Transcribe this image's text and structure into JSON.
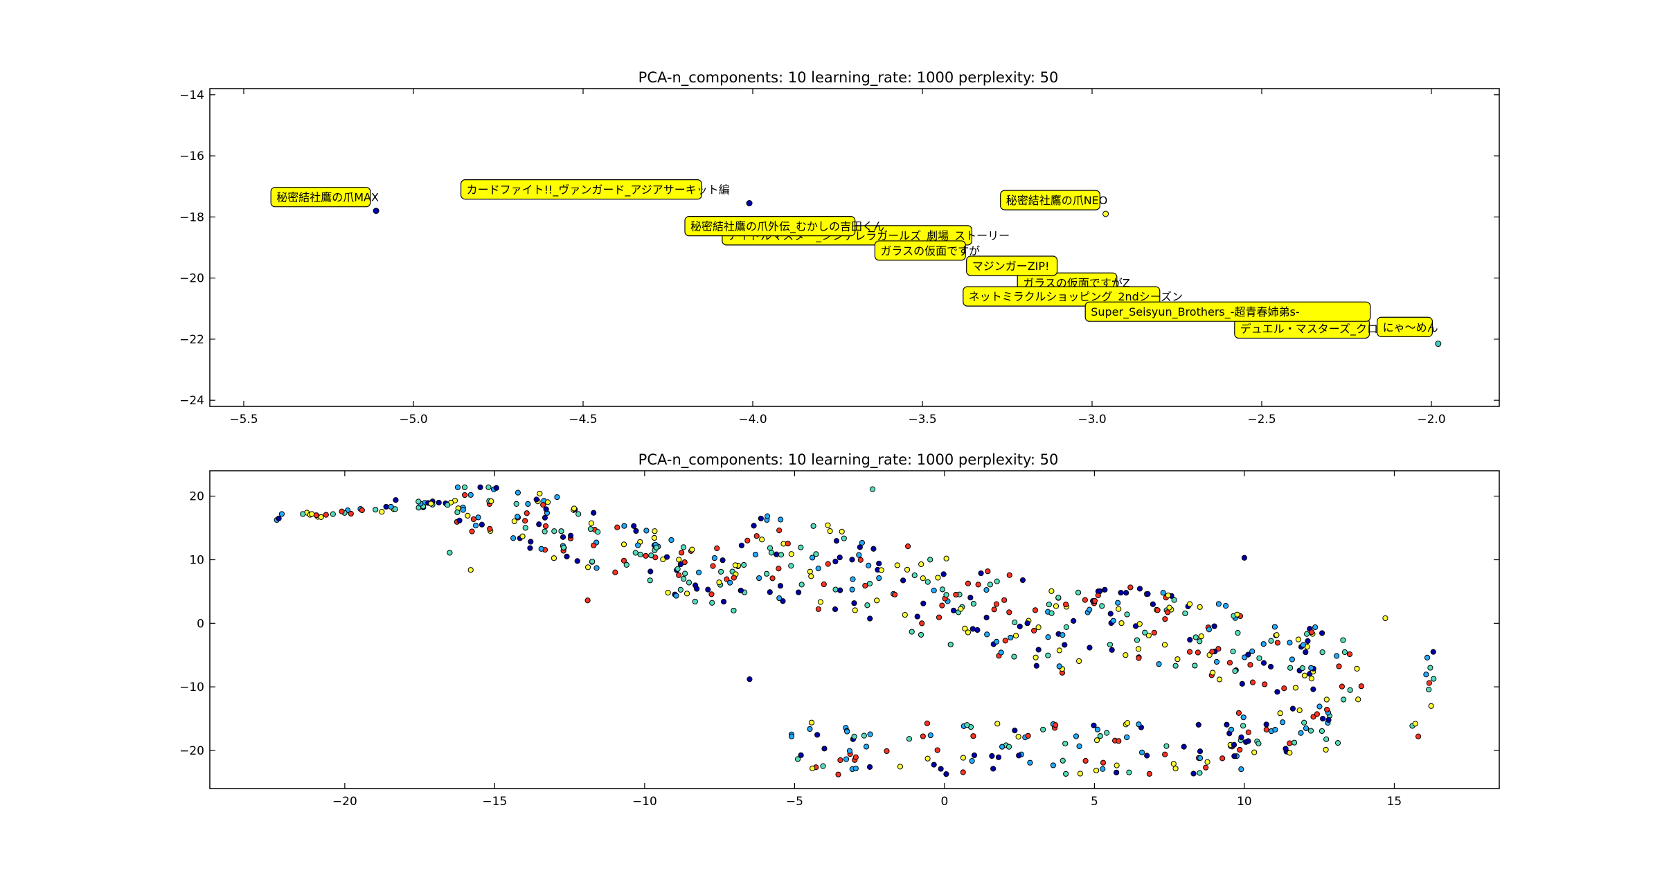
{
  "chart_data": [
    {
      "type": "scatter",
      "title": "PCA-n_components: 10 learning_rate: 1000 perplexity: 50",
      "xlabel": "",
      "ylabel": "",
      "xlim": [
        -5.6,
        -1.8
      ],
      "ylim": [
        -24.2,
        -13.8
      ],
      "xticks": [
        -5.5,
        -5.0,
        -4.5,
        -4.0,
        -3.5,
        -3.0,
        -2.5,
        -2.0
      ],
      "yticks": [
        -14,
        -16,
        -18,
        -20,
        -22,
        -24
      ],
      "grid": false,
      "points": [
        {
          "x": -5.11,
          "y": -17.8,
          "color": "#0000aa"
        },
        {
          "x": -4.01,
          "y": -17.55,
          "color": "#0000aa"
        },
        {
          "x": -2.96,
          "y": -17.9,
          "color": "#ffff33"
        },
        {
          "x": -1.98,
          "y": -22.15,
          "color": "#44ccbb"
        }
      ],
      "annotations": [
        {
          "label": "秘密結社鷹の爪MAX",
          "x": -5.42,
          "y": -17.35
        },
        {
          "label": "カードファイト!!_ヴァンガード_アジアサーキット編",
          "x": -4.86,
          "y": -17.1
        },
        {
          "label": "秘密結社鷹の爪NEO",
          "x": -3.27,
          "y": -17.45
        },
        {
          "label": "アイドルマスター_シンデレラガールズ_劇場_ストーリー",
          "x": -4.09,
          "y": -18.6
        },
        {
          "label": "秘密結社鷹の爪外伝_むかしの吉田くん",
          "x": -4.2,
          "y": -18.3
        },
        {
          "label": "ガラスの仮面ですが",
          "x": -3.64,
          "y": -19.1
        },
        {
          "label": "ガラスの仮面ですがZ",
          "x": -3.22,
          "y": -20.15
        },
        {
          "label": "マジンガーZIP!",
          "x": -3.37,
          "y": -19.6
        },
        {
          "label": "ネットミラクルショッピング_2ndシーズン",
          "x": -3.38,
          "y": -20.6
        },
        {
          "label": "デュエル・マスターズ_クロス",
          "x": -2.58,
          "y": -21.65
        },
        {
          "label": "Super_Seisyun_Brothers_-超青春姉弟s-",
          "x": -3.02,
          "y": -21.1
        },
        {
          "label": "にゃ〜めん",
          "x": -2.16,
          "y": -21.6
        }
      ]
    },
    {
      "type": "scatter",
      "title": "PCA-n_components: 10 learning_rate: 1000 perplexity: 50",
      "xlabel": "",
      "ylabel": "",
      "xlim": [
        -24.5,
        18.5
      ],
      "ylim": [
        -26,
        24
      ],
      "xticks": [
        -20,
        -15,
        -10,
        -5,
        0,
        5,
        10,
        15
      ],
      "yticks": [
        20,
        10,
        0,
        -10,
        -20
      ],
      "grid": false,
      "colors": [
        "#0000aa",
        "#22aaff",
        "#55ddbb",
        "#ffff33",
        "#ff3322"
      ],
      "cloud": [
        {
          "x_range": [
            -22.3,
            -16.3
          ],
          "y_range": [
            15.8,
            19.5
          ],
          "count": 34,
          "note": "upper-left tail"
        },
        {
          "x_range": [
            -16.3,
            -6.8
          ],
          "y_range": [
            2.0,
            21.4
          ],
          "count": 150,
          "note": "upper band"
        },
        {
          "x_range": [
            -6.8,
            4.8
          ],
          "y_range": [
            -8.0,
            17.0
          ],
          "count": 170,
          "note": "central band"
        },
        {
          "x_range": [
            4.8,
            13.8
          ],
          "y_range": [
            -12.0,
            10.5
          ],
          "count": 140,
          "note": "right band"
        },
        {
          "x_range": [
            -5.2,
            10.5
          ],
          "y_range": [
            -23.8,
            -15.5
          ],
          "count": 120,
          "note": "lower cluster"
        },
        {
          "x_range": [
            9.5,
            13.2
          ],
          "y_range": [
            -20.5,
            -13.0
          ],
          "count": 40,
          "note": "lower-right cluster"
        },
        {
          "x_range": [
            15.6,
            16.4
          ],
          "y_range": [
            -18.0,
            -4.0
          ],
          "count": 6,
          "note": "far right"
        }
      ],
      "sample_points": [
        {
          "x": -22.2,
          "y": 16.5
        },
        {
          "x": -22.1,
          "y": 17.2
        },
        {
          "x": -21.4,
          "y": 17.2
        },
        {
          "x": -21.1,
          "y": 17.2
        },
        {
          "x": -20.1,
          "y": 17.6
        },
        {
          "x": -18.3,
          "y": 19.4
        },
        {
          "x": -15.8,
          "y": 20.2
        },
        {
          "x": -16.5,
          "y": 11.1
        },
        {
          "x": -15.8,
          "y": 8.4
        },
        {
          "x": -11.9,
          "y": 3.6
        },
        {
          "x": -6.5,
          "y": -8.8
        },
        {
          "x": -5.1,
          "y": -17.8
        },
        {
          "x": -2.4,
          "y": 21.1
        },
        {
          "x": 15.7,
          "y": -15.8
        },
        {
          "x": 15.8,
          "y": -17.8
        },
        {
          "x": 16.3,
          "y": -4.5
        },
        {
          "x": 16.1,
          "y": -5.4
        },
        {
          "x": 16.2,
          "y": -7.0
        },
        {
          "x": 14.7,
          "y": 0.8
        },
        {
          "x": 13.9,
          "y": -9.9
        },
        {
          "x": 10.0,
          "y": 10.3
        }
      ]
    }
  ]
}
